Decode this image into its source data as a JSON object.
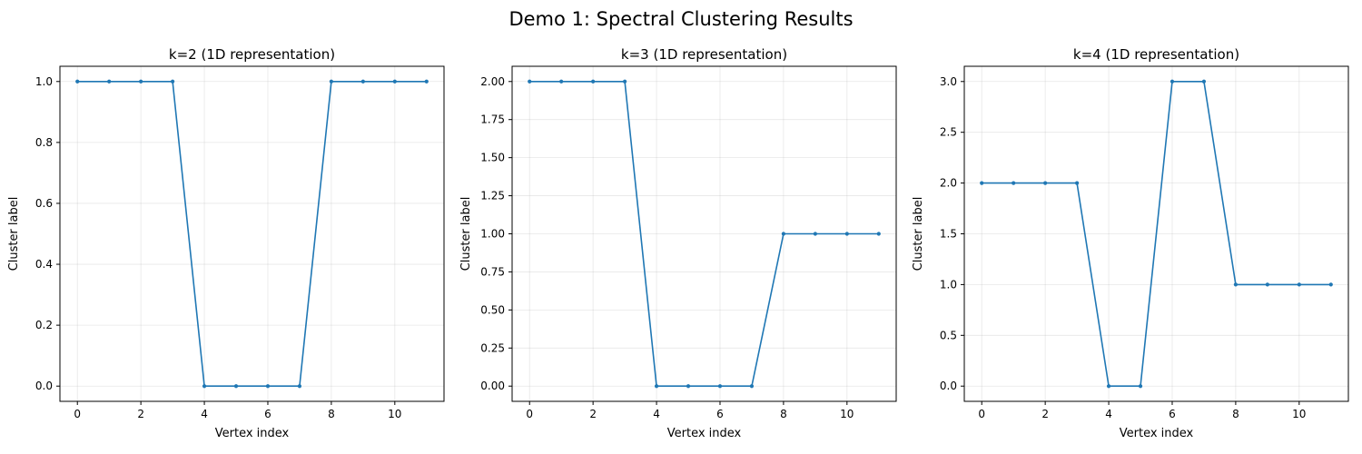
{
  "figure": {
    "suptitle": "Demo 1: Spectral Clustering Results"
  },
  "colors": {
    "series": "#1f77b4",
    "grid": "#b0b0b0",
    "axis": "#000000"
  },
  "chart_data": [
    {
      "type": "line",
      "title": "k=2 (1D representation)",
      "xlabel": "Vertex index",
      "ylabel": "Cluster label",
      "x": [
        0,
        1,
        2,
        3,
        4,
        5,
        6,
        7,
        8,
        9,
        10,
        11
      ],
      "values": [
        1,
        1,
        1,
        1,
        0,
        0,
        0,
        0,
        1,
        1,
        1,
        1
      ],
      "xlim": [
        -0.55,
        11.55
      ],
      "ylim": [
        -0.05,
        1.05
      ],
      "xticks": [
        0,
        2,
        4,
        6,
        8,
        10
      ],
      "xtick_labels": [
        "0",
        "2",
        "4",
        "6",
        "8",
        "10"
      ],
      "yticks": [
        0,
        0.2,
        0.4,
        0.6,
        0.8,
        1.0
      ],
      "ytick_labels": [
        "0.0",
        "0.2",
        "0.4",
        "0.6",
        "0.8",
        "1.0"
      ],
      "grid": true,
      "marker": "dot"
    },
    {
      "type": "line",
      "title": "k=3 (1D representation)",
      "xlabel": "Vertex index",
      "ylabel": "Cluster label",
      "x": [
        0,
        1,
        2,
        3,
        4,
        5,
        6,
        7,
        8,
        9,
        10,
        11
      ],
      "values": [
        2,
        2,
        2,
        2,
        0,
        0,
        0,
        0,
        1,
        1,
        1,
        1
      ],
      "xlim": [
        -0.55,
        11.55
      ],
      "ylim": [
        -0.1,
        2.1
      ],
      "xticks": [
        0,
        2,
        4,
        6,
        8,
        10
      ],
      "xtick_labels": [
        "0",
        "2",
        "4",
        "6",
        "8",
        "10"
      ],
      "yticks": [
        0,
        0.25,
        0.5,
        0.75,
        1.0,
        1.25,
        1.5,
        1.75,
        2.0
      ],
      "ytick_labels": [
        "0.00",
        "0.25",
        "0.50",
        "0.75",
        "1.00",
        "1.25",
        "1.50",
        "1.75",
        "2.00"
      ],
      "grid": true,
      "marker": "dot"
    },
    {
      "type": "line",
      "title": "k=4 (1D representation)",
      "xlabel": "Vertex index",
      "ylabel": "Cluster label",
      "x": [
        0,
        1,
        2,
        3,
        4,
        5,
        6,
        7,
        8,
        9,
        10,
        11
      ],
      "values": [
        2,
        2,
        2,
        2,
        0,
        0,
        3,
        3,
        1,
        1,
        1,
        1
      ],
      "xlim": [
        -0.55,
        11.55
      ],
      "ylim": [
        -0.15,
        3.15
      ],
      "xticks": [
        0,
        2,
        4,
        6,
        8,
        10
      ],
      "xtick_labels": [
        "0",
        "2",
        "4",
        "6",
        "8",
        "10"
      ],
      "yticks": [
        0,
        0.5,
        1.0,
        1.5,
        2.0,
        2.5,
        3.0
      ],
      "ytick_labels": [
        "0.0",
        "0.5",
        "1.0",
        "1.5",
        "2.0",
        "2.5",
        "3.0"
      ],
      "grid": true,
      "marker": "dot"
    }
  ]
}
